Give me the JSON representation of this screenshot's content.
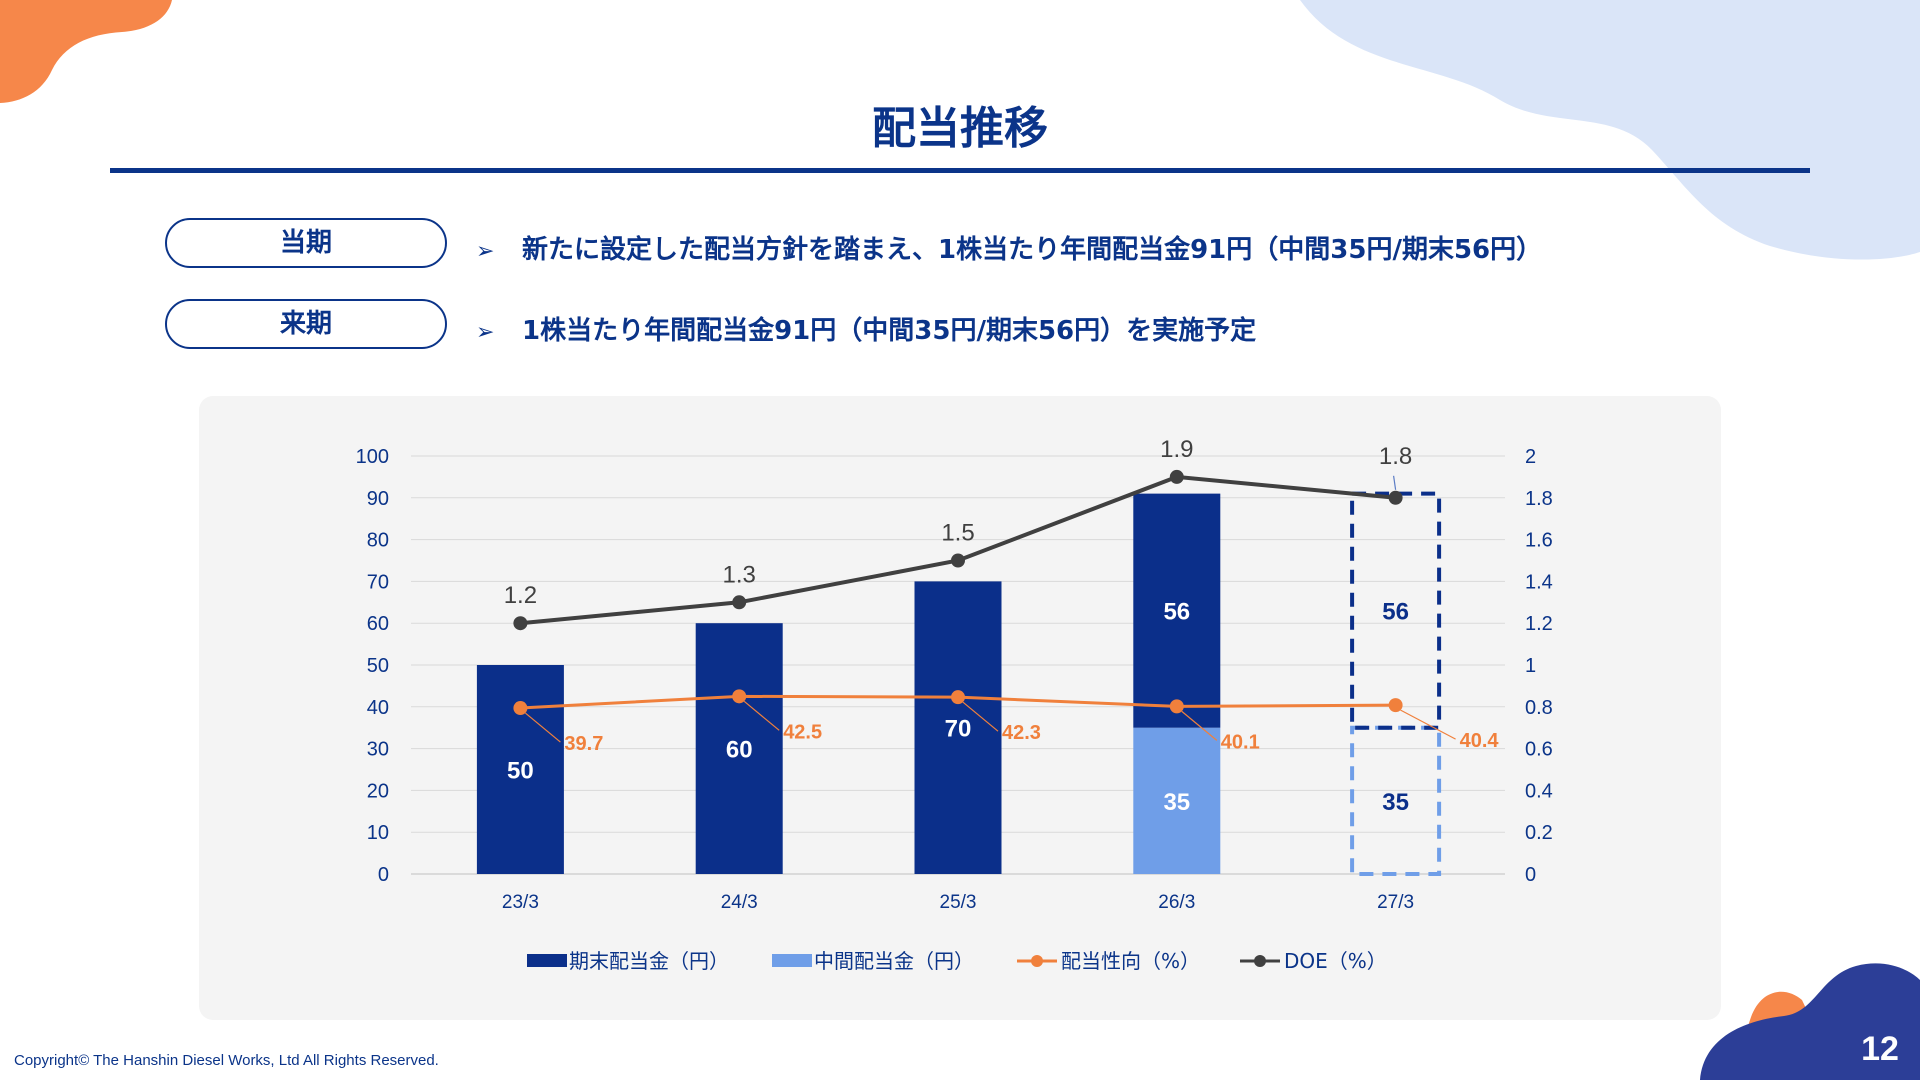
{
  "slide": {
    "title": "配当推移",
    "rows": [
      {
        "tag": "当期",
        "text": "新たに設定した配当方針を踏まえ、1株当たり年間配当金91円（中間35円/期末56円）"
      },
      {
        "tag": "来期",
        "text": "1株当たり年間配当金91円（中間35円/期末56円）を実施予定"
      }
    ],
    "bullet_glyph": "➢",
    "copyright": "Copyright© The Hanshin Diesel Works, Ltd All Rights Reserved.",
    "page_number": "12"
  },
  "colors": {
    "primary": "#0b3489",
    "bar_final": "#0b2f8a",
    "bar_interim": "#6f9ee8",
    "payout": "#f0803c",
    "doe": "#404040",
    "panel": "#f4f4f4",
    "accent_orange": "#f6874a",
    "accent_light_blue": "#dae5f8",
    "accent_dark_blue": "#2c3e97"
  },
  "chart_data": {
    "type": "bar",
    "categories": [
      "23/3",
      "24/3",
      "25/3",
      "26/3",
      "27/3"
    ],
    "series": [
      {
        "name": "期末配当金（円）",
        "type": "bar",
        "values": [
          50,
          60,
          70,
          56,
          56
        ],
        "labels": [
          "50",
          "60",
          "70",
          "56",
          "56"
        ]
      },
      {
        "name": "中間配当金（円）",
        "type": "bar",
        "values": [
          0,
          0,
          0,
          35,
          35
        ],
        "labels": [
          "",
          "",
          "",
          "35",
          "35"
        ]
      },
      {
        "name": "配当性向（%）",
        "type": "line",
        "axis": "left",
        "values": [
          39.7,
          42.5,
          42.3,
          40.1,
          40.4
        ],
        "labels": [
          "39.7",
          "42.5",
          "42.3",
          "40.1",
          "40.4"
        ]
      },
      {
        "name": "DOE（%）",
        "type": "line",
        "axis": "right",
        "values": [
          1.2,
          1.3,
          1.5,
          1.9,
          1.8
        ],
        "labels": [
          "1.2",
          "1.3",
          "1.5",
          "1.9",
          "1.8"
        ]
      }
    ],
    "forecast_category": "27/3",
    "ylim": [
      0,
      100
    ],
    "yticks": [
      "0",
      "10",
      "20",
      "30",
      "40",
      "50",
      "60",
      "70",
      "80",
      "90",
      "100"
    ],
    "y2lim": [
      0,
      2
    ],
    "y2ticks": [
      "0",
      "0.2",
      "0.4",
      "0.6",
      "0.8",
      "1",
      "1.2",
      "1.4",
      "1.6",
      "1.8",
      "2"
    ],
    "grid": true,
    "legend_position": "bottom"
  }
}
